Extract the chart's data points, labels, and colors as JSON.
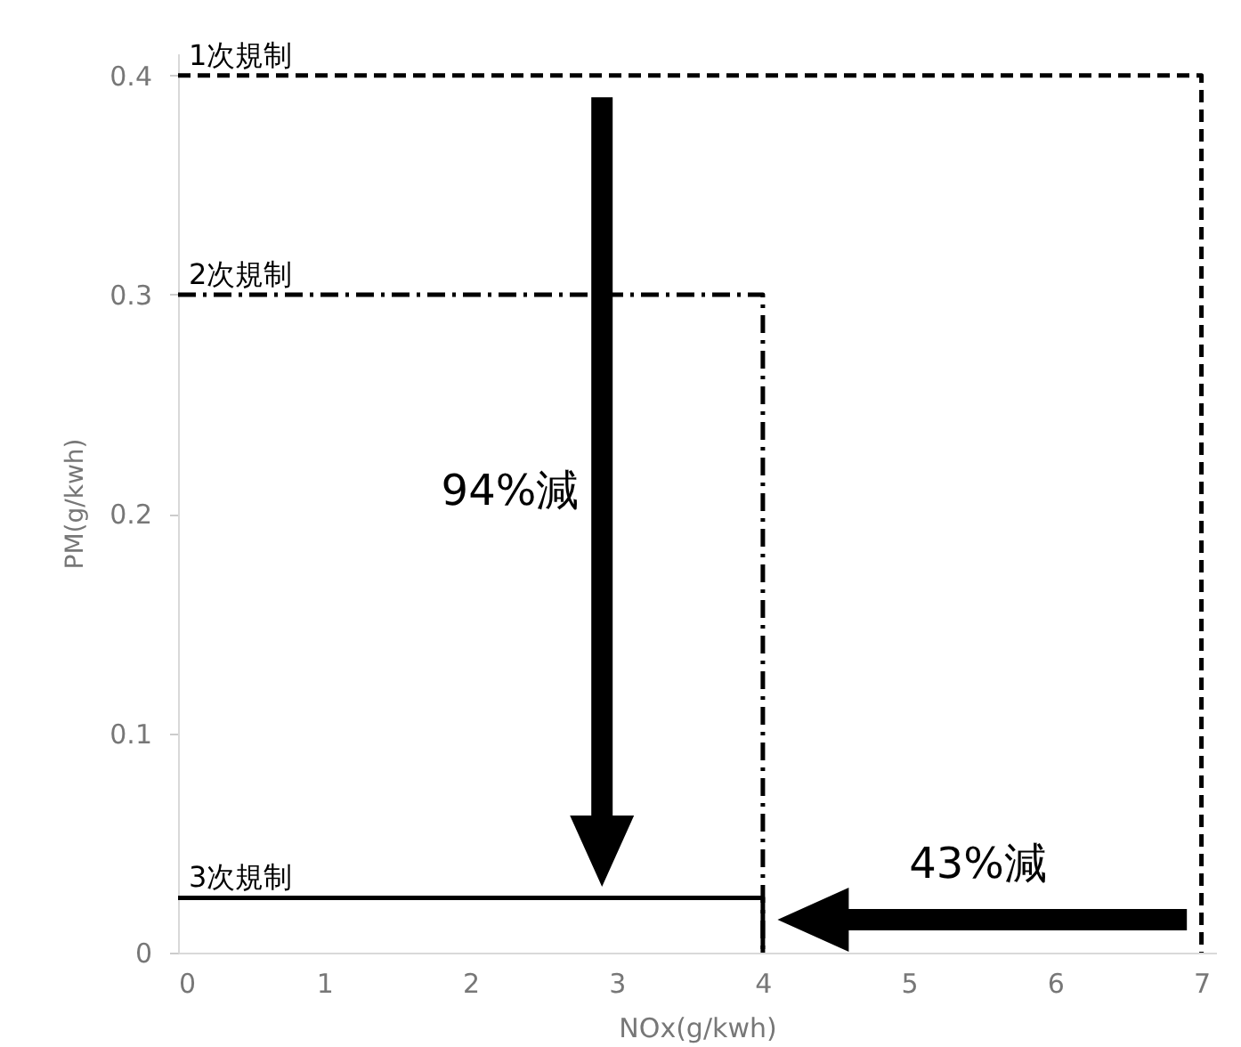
{
  "chart_data": {
    "type": "line",
    "xlabel": "NOx(g/kwh)",
    "ylabel": "PM(g/kwh)",
    "xlim": [
      0,
      7.1
    ],
    "xticks": [
      0,
      1,
      2,
      3,
      4,
      5,
      6,
      7
    ],
    "ylim": [
      0,
      0.41
    ],
    "yticks": [
      0,
      0.1,
      0.2,
      0.3,
      0.4
    ],
    "grid": false,
    "legend": false,
    "marker": "none",
    "series": [
      {
        "name": "1次規制",
        "color": "#000000",
        "line_style": "dashed",
        "x": [
          0,
          7,
          7
        ],
        "values": [
          0.4,
          0.4,
          0
        ]
      },
      {
        "name": "2次規制",
        "color": "#000000",
        "line_style": "dashdot",
        "x": [
          0,
          4,
          4
        ],
        "values": [
          0.3,
          0.3,
          0
        ]
      },
      {
        "name": "3次規制",
        "color": "#000000",
        "line_style": "solid",
        "x": [
          0,
          4,
          4
        ],
        "values": [
          0.025,
          0.025,
          0
        ]
      }
    ],
    "annotations": [
      "94%減",
      "43%減"
    ]
  }
}
